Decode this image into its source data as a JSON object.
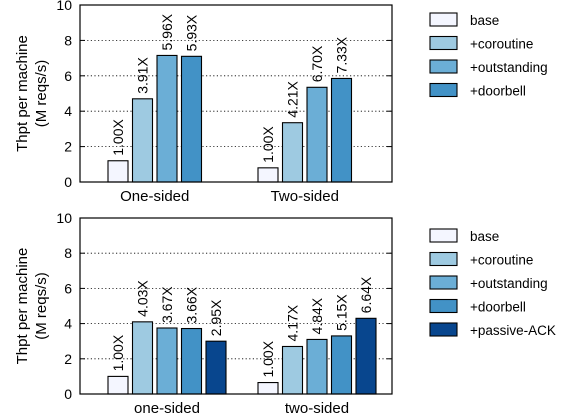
{
  "chart_data": [
    {
      "type": "bar",
      "ylabel": [
        "Thpt per machine",
        "(M reqs/s)"
      ],
      "xlabel": "",
      "ylim": [
        0,
        10
      ],
      "yticks": [
        0,
        2,
        4,
        6,
        8,
        10
      ],
      "grid": "horizontal dotted",
      "legend_position": "right",
      "categories": [
        "One-sided",
        "Two-sided"
      ],
      "series": [
        {
          "name": "base",
          "color": "#f4f6ff",
          "values": [
            1.2,
            0.8
          ],
          "labels": [
            "1.00X",
            "1.00X"
          ]
        },
        {
          "name": "+coroutine",
          "color": "#9ecae1",
          "values": [
            4.7,
            3.35
          ],
          "labels": [
            "3.91X",
            "4.21X"
          ]
        },
        {
          "name": "+outstanding",
          "color": "#6baed6",
          "values": [
            7.15,
            5.35
          ],
          "labels": [
            "5.96X",
            "6.70X"
          ]
        },
        {
          "name": "+doorbell",
          "color": "#4292c6",
          "values": [
            7.1,
            5.85
          ],
          "labels": [
            "5.93X",
            "7.33X"
          ]
        }
      ]
    },
    {
      "type": "bar",
      "ylabel": [
        "Thpt per machine",
        "(M reqs/s)"
      ],
      "xlabel": "",
      "ylim": [
        0,
        10
      ],
      "yticks": [
        0,
        2,
        4,
        6,
        8,
        10
      ],
      "grid": "horizontal dotted",
      "legend_position": "right",
      "categories": [
        "one-sided",
        "two-sided"
      ],
      "series": [
        {
          "name": "base",
          "color": "#f4f6ff",
          "values": [
            1.0,
            0.65
          ],
          "labels": [
            "1.00X",
            "1.00X"
          ]
        },
        {
          "name": "+coroutine",
          "color": "#9ecae1",
          "values": [
            4.1,
            2.7
          ],
          "labels": [
            "4.03X",
            "4.17X"
          ]
        },
        {
          "name": "+outstanding",
          "color": "#6baed6",
          "values": [
            3.75,
            3.1
          ],
          "labels": [
            "3.67X",
            "4.84X"
          ]
        },
        {
          "name": "+doorbell",
          "color": "#4292c6",
          "values": [
            3.72,
            3.3
          ],
          "labels": [
            "3.66X",
            "5.15X"
          ]
        },
        {
          "name": "+passive-ACK",
          "color": "#08468e",
          "values": [
            3.0,
            4.3
          ],
          "labels": [
            "2.95X",
            "6.64X"
          ]
        }
      ]
    }
  ]
}
